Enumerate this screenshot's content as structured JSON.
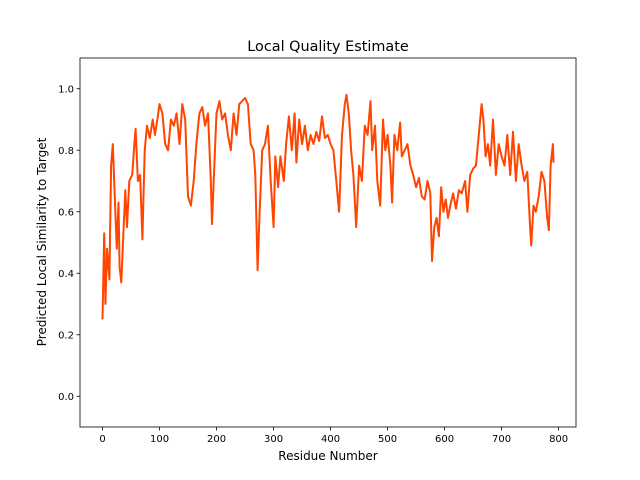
{
  "chart_data": {
    "type": "line",
    "title": "Local Quality Estimate",
    "xlabel": "Residue Number",
    "ylabel": "Predicted Local Similarity to Target",
    "xlim": [
      -39.5,
      830.5
    ],
    "ylim": [
      -0.1,
      1.1
    ],
    "xticks": [
      0,
      100,
      200,
      300,
      400,
      500,
      600,
      700,
      800
    ],
    "xtick_labels": [
      "0",
      "100",
      "200",
      "300",
      "400",
      "500",
      "600",
      "700",
      "800"
    ],
    "yticks": [
      0.0,
      0.2,
      0.4,
      0.6,
      0.8,
      1.0
    ],
    "ytick_labels": [
      "0.0",
      "0.2",
      "0.4",
      "0.6",
      "0.8",
      "1.0"
    ],
    "grid": false,
    "series": [
      {
        "name": "Local Quality",
        "color": "#ff4500",
        "x": [
          0,
          3,
          5,
          8,
          12,
          15,
          18,
          22,
          25,
          28,
          30,
          33,
          36,
          40,
          43,
          47,
          52,
          55,
          58,
          62,
          66,
          70,
          74,
          78,
          83,
          88,
          92,
          97,
          100,
          105,
          110,
          115,
          120,
          125,
          130,
          135,
          140,
          145,
          150,
          155,
          160,
          165,
          170,
          175,
          180,
          185,
          190,
          192,
          195,
          200,
          205,
          210,
          215,
          220,
          225,
          230,
          235,
          240,
          245,
          250,
          255,
          260,
          265,
          268,
          272,
          275,
          280,
          285,
          290,
          295,
          300,
          303,
          308,
          312,
          318,
          322,
          327,
          332,
          337,
          340,
          345,
          350,
          355,
          360,
          365,
          370,
          375,
          380,
          385,
          390,
          395,
          400,
          405,
          410,
          415,
          420,
          425,
          428,
          432,
          436,
          440,
          445,
          450,
          455,
          460,
          465,
          470,
          473,
          478,
          482,
          487,
          492,
          496,
          500,
          505,
          508,
          512,
          517,
          522,
          525,
          530,
          535,
          540,
          545,
          550,
          555,
          560,
          565,
          570,
          575,
          578,
          582,
          586,
          590,
          594,
          598,
          602,
          606,
          610,
          615,
          620,
          625,
          630,
          636,
          640,
          645,
          650,
          655,
          660,
          665,
          668,
          672,
          676,
          680,
          685,
          690,
          695,
          700,
          705,
          710,
          715,
          720,
          725,
          730,
          735,
          740,
          745,
          750,
          752,
          756,
          760,
          765,
          770,
          775,
          780,
          783,
          786,
          790,
          791
        ],
        "y": [
          0.25,
          0.53,
          0.3,
          0.48,
          0.38,
          0.75,
          0.82,
          0.62,
          0.48,
          0.63,
          0.42,
          0.37,
          0.5,
          0.67,
          0.55,
          0.7,
          0.72,
          0.8,
          0.87,
          0.7,
          0.72,
          0.51,
          0.8,
          0.88,
          0.84,
          0.9,
          0.85,
          0.91,
          0.95,
          0.92,
          0.82,
          0.8,
          0.9,
          0.88,
          0.92,
          0.82,
          0.95,
          0.9,
          0.65,
          0.62,
          0.7,
          0.83,
          0.92,
          0.94,
          0.88,
          0.92,
          0.7,
          0.56,
          0.7,
          0.92,
          0.96,
          0.9,
          0.92,
          0.85,
          0.8,
          0.92,
          0.85,
          0.95,
          0.96,
          0.97,
          0.95,
          0.82,
          0.8,
          0.72,
          0.41,
          0.57,
          0.8,
          0.82,
          0.88,
          0.7,
          0.55,
          0.78,
          0.68,
          0.78,
          0.7,
          0.82,
          0.91,
          0.8,
          0.92,
          0.76,
          0.9,
          0.82,
          0.88,
          0.8,
          0.85,
          0.82,
          0.86,
          0.83,
          0.91,
          0.84,
          0.85,
          0.82,
          0.8,
          0.7,
          0.6,
          0.85,
          0.95,
          0.98,
          0.92,
          0.8,
          0.72,
          0.55,
          0.75,
          0.7,
          0.88,
          0.85,
          0.96,
          0.8,
          0.88,
          0.7,
          0.62,
          0.9,
          0.8,
          0.85,
          0.75,
          0.63,
          0.85,
          0.8,
          0.89,
          0.78,
          0.8,
          0.82,
          0.75,
          0.72,
          0.68,
          0.71,
          0.65,
          0.64,
          0.7,
          0.66,
          0.44,
          0.55,
          0.58,
          0.52,
          0.68,
          0.6,
          0.64,
          0.58,
          0.62,
          0.66,
          0.61,
          0.67,
          0.66,
          0.7,
          0.6,
          0.72,
          0.74,
          0.75,
          0.85,
          0.95,
          0.9,
          0.78,
          0.82,
          0.75,
          0.9,
          0.72,
          0.82,
          0.78,
          0.75,
          0.85,
          0.72,
          0.86,
          0.7,
          0.82,
          0.75,
          0.7,
          0.73,
          0.55,
          0.49,
          0.62,
          0.6,
          0.65,
          0.73,
          0.7,
          0.58,
          0.54,
          0.75,
          0.82,
          0.76
        ]
      }
    ]
  }
}
